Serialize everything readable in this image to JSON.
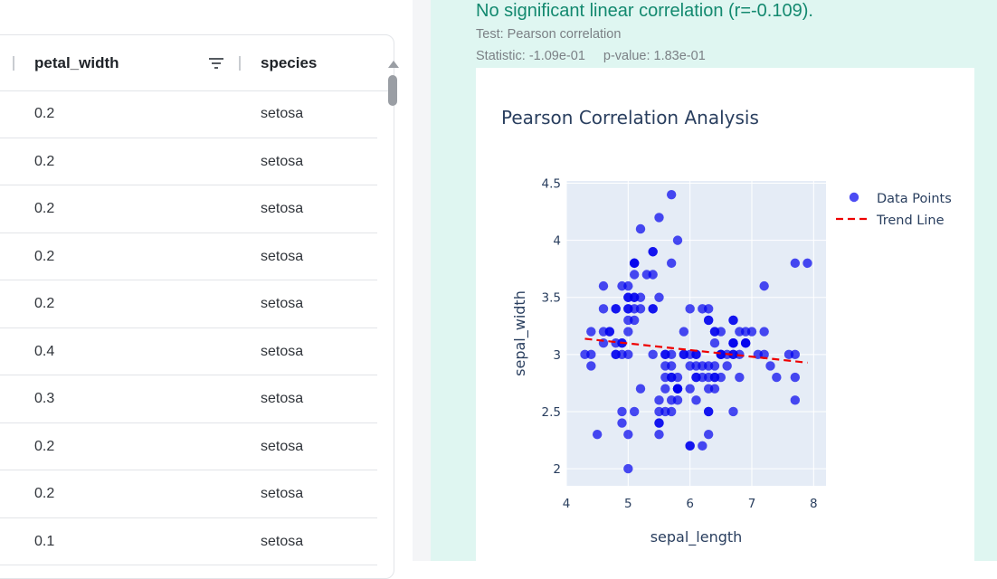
{
  "table": {
    "columns": [
      {
        "label": "petal_width",
        "has_filter": true
      },
      {
        "label": "species",
        "has_filter": false
      }
    ],
    "rows": [
      {
        "petal_width": "0.2",
        "species": "setosa"
      },
      {
        "petal_width": "0.2",
        "species": "setosa"
      },
      {
        "petal_width": "0.2",
        "species": "setosa"
      },
      {
        "petal_width": "0.2",
        "species": "setosa"
      },
      {
        "petal_width": "0.2",
        "species": "setosa"
      },
      {
        "petal_width": "0.4",
        "species": "setosa"
      },
      {
        "petal_width": "0.3",
        "species": "setosa"
      },
      {
        "petal_width": "0.2",
        "species": "setosa"
      },
      {
        "petal_width": "0.2",
        "species": "setosa"
      },
      {
        "petal_width": "0.1",
        "species": "setosa"
      }
    ],
    "icons": {
      "filter": "filter-icon",
      "scroll_up": "chevron-up-icon"
    }
  },
  "result": {
    "summary": "No significant linear correlation (r=-0.109).",
    "test_label": "Test: Pearson correlation",
    "statistic_label": "Statistic: -1.09e-01",
    "pvalue_label": "p-value: 1.83e-01"
  },
  "chart_data": {
    "type": "scatter",
    "title": "Pearson Correlation Analysis",
    "xlabel": "sepal_length",
    "ylabel": "sepal_width",
    "xlim": [
      4,
      8.2
    ],
    "ylim": [
      1.85,
      4.52
    ],
    "x_ticks": [
      4,
      5,
      6,
      7,
      8
    ],
    "y_ticks": [
      2,
      2.5,
      3,
      3.5,
      4,
      4.5
    ],
    "grid": true,
    "legend_position": "top-right",
    "colors": {
      "points": "#0000ee",
      "trend": "#ee0000",
      "plot_bg": "#e5ecf6"
    },
    "series": [
      {
        "name": "Data Points",
        "mode": "markers",
        "points": [
          [
            5.1,
            3.5
          ],
          [
            4.9,
            3.0
          ],
          [
            4.7,
            3.2
          ],
          [
            4.6,
            3.1
          ],
          [
            5.0,
            3.6
          ],
          [
            5.4,
            3.9
          ],
          [
            4.6,
            3.4
          ],
          [
            5.0,
            3.4
          ],
          [
            4.4,
            2.9
          ],
          [
            4.9,
            3.1
          ],
          [
            5.4,
            3.7
          ],
          [
            4.8,
            3.4
          ],
          [
            4.8,
            3.0
          ],
          [
            4.3,
            3.0
          ],
          [
            5.8,
            4.0
          ],
          [
            5.7,
            4.4
          ],
          [
            5.4,
            3.9
          ],
          [
            5.1,
            3.5
          ],
          [
            5.7,
            3.8
          ],
          [
            5.1,
            3.8
          ],
          [
            5.4,
            3.4
          ],
          [
            5.1,
            3.7
          ],
          [
            4.6,
            3.6
          ],
          [
            5.1,
            3.3
          ],
          [
            4.8,
            3.4
          ],
          [
            5.0,
            3.0
          ],
          [
            5.0,
            3.4
          ],
          [
            5.2,
            3.5
          ],
          [
            5.2,
            3.4
          ],
          [
            4.7,
            3.2
          ],
          [
            4.8,
            3.1
          ],
          [
            5.4,
            3.4
          ],
          [
            5.2,
            4.1
          ],
          [
            5.5,
            4.2
          ],
          [
            4.9,
            3.1
          ],
          [
            5.0,
            3.2
          ],
          [
            5.5,
            3.5
          ],
          [
            4.9,
            3.6
          ],
          [
            4.4,
            3.0
          ],
          [
            5.1,
            3.4
          ],
          [
            5.0,
            3.5
          ],
          [
            4.5,
            2.3
          ],
          [
            4.4,
            3.2
          ],
          [
            5.0,
            3.5
          ],
          [
            5.1,
            3.8
          ],
          [
            4.8,
            3.0
          ],
          [
            5.1,
            3.8
          ],
          [
            4.6,
            3.2
          ],
          [
            5.3,
            3.7
          ],
          [
            5.0,
            3.3
          ],
          [
            7.0,
            3.2
          ],
          [
            6.4,
            3.2
          ],
          [
            6.9,
            3.1
          ],
          [
            5.5,
            2.3
          ],
          [
            6.5,
            2.8
          ],
          [
            5.7,
            2.8
          ],
          [
            6.3,
            3.3
          ],
          [
            4.9,
            2.4
          ],
          [
            6.6,
            2.9
          ],
          [
            5.2,
            2.7
          ],
          [
            5.0,
            2.0
          ],
          [
            5.9,
            3.0
          ],
          [
            6.0,
            2.2
          ],
          [
            6.1,
            2.9
          ],
          [
            5.6,
            2.9
          ],
          [
            6.7,
            3.1
          ],
          [
            5.6,
            3.0
          ],
          [
            5.8,
            2.7
          ],
          [
            6.2,
            2.2
          ],
          [
            5.6,
            2.5
          ],
          [
            5.9,
            3.2
          ],
          [
            6.1,
            2.8
          ],
          [
            6.3,
            2.5
          ],
          [
            6.1,
            2.8
          ],
          [
            6.4,
            2.9
          ],
          [
            6.6,
            3.0
          ],
          [
            6.8,
            2.8
          ],
          [
            6.7,
            3.0
          ],
          [
            6.0,
            2.9
          ],
          [
            5.7,
            2.6
          ],
          [
            5.5,
            2.4
          ],
          [
            5.5,
            2.4
          ],
          [
            5.8,
            2.7
          ],
          [
            6.0,
            2.7
          ],
          [
            5.4,
            3.0
          ],
          [
            6.0,
            3.4
          ],
          [
            6.7,
            3.1
          ],
          [
            6.3,
            2.3
          ],
          [
            5.6,
            3.0
          ],
          [
            5.5,
            2.5
          ],
          [
            5.5,
            2.6
          ],
          [
            6.1,
            3.0
          ],
          [
            5.8,
            2.6
          ],
          [
            5.0,
            2.3
          ],
          [
            5.6,
            2.7
          ],
          [
            5.7,
            3.0
          ],
          [
            5.7,
            2.9
          ],
          [
            6.2,
            2.9
          ],
          [
            5.1,
            2.5
          ],
          [
            5.7,
            2.8
          ],
          [
            6.3,
            3.3
          ],
          [
            5.8,
            2.7
          ],
          [
            7.1,
            3.0
          ],
          [
            6.3,
            2.9
          ],
          [
            6.5,
            3.0
          ],
          [
            7.6,
            3.0
          ],
          [
            4.9,
            2.5
          ],
          [
            7.3,
            2.9
          ],
          [
            6.7,
            2.5
          ],
          [
            7.2,
            3.6
          ],
          [
            6.5,
            3.2
          ],
          [
            6.4,
            2.7
          ],
          [
            6.8,
            3.0
          ],
          [
            5.7,
            2.5
          ],
          [
            5.8,
            2.8
          ],
          [
            6.4,
            3.2
          ],
          [
            6.5,
            3.0
          ],
          [
            7.7,
            3.8
          ],
          [
            7.7,
            2.6
          ],
          [
            6.0,
            2.2
          ],
          [
            6.9,
            3.2
          ],
          [
            5.6,
            2.8
          ],
          [
            7.7,
            2.8
          ],
          [
            6.3,
            2.7
          ],
          [
            6.7,
            3.3
          ],
          [
            7.2,
            3.2
          ],
          [
            6.2,
            2.8
          ],
          [
            6.1,
            3.0
          ],
          [
            6.4,
            2.8
          ],
          [
            7.2,
            3.0
          ],
          [
            7.4,
            2.8
          ],
          [
            7.9,
            3.8
          ],
          [
            6.4,
            2.8
          ],
          [
            6.3,
            2.8
          ],
          [
            6.1,
            2.6
          ],
          [
            7.7,
            3.0
          ],
          [
            6.3,
            3.4
          ],
          [
            6.4,
            3.1
          ],
          [
            6.0,
            3.0
          ],
          [
            6.9,
            3.1
          ],
          [
            6.7,
            3.1
          ],
          [
            6.9,
            3.1
          ],
          [
            5.8,
            2.7
          ],
          [
            6.8,
            3.2
          ],
          [
            6.7,
            3.3
          ],
          [
            6.7,
            3.0
          ],
          [
            6.3,
            2.5
          ],
          [
            6.5,
            3.0
          ],
          [
            6.2,
            3.4
          ],
          [
            5.9,
            3.0
          ]
        ]
      },
      {
        "name": "Trend Line",
        "mode": "lines",
        "style": "dashed",
        "points": [
          [
            4.3,
            3.138
          ],
          [
            7.9,
            2.9286
          ]
        ]
      }
    ]
  }
}
